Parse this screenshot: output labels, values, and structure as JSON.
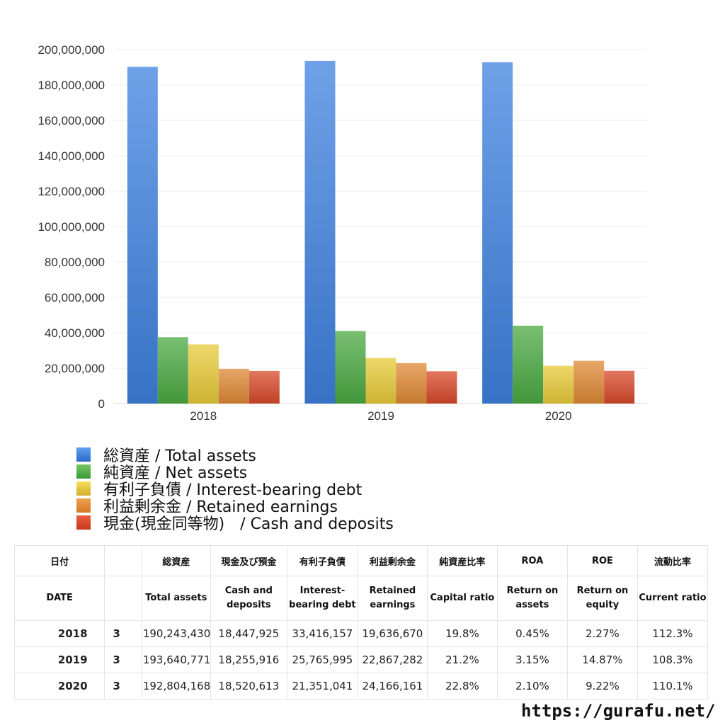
{
  "chart_data": {
    "type": "bar",
    "categories": [
      "2018",
      "2019",
      "2020"
    ],
    "ylim": [
      0,
      200000000
    ],
    "y_ticks": [
      "0",
      "20,000,000",
      "40,000,000",
      "60,000,000",
      "80,000,000",
      "100,000,000",
      "120,000,000",
      "140,000,000",
      "160,000,000",
      "180,000,000",
      "200,000,000"
    ],
    "grid": true,
    "legend_position": "bottom-left",
    "series": [
      {
        "name": "総資産 / Total assets",
        "color": "#3f82e0",
        "values": [
          190243430,
          193640771,
          192804168
        ]
      },
      {
        "name": "純資産 / Net assets",
        "color": "#4caa43",
        "values": [
          37500000,
          41000000,
          44000000
        ]
      },
      {
        "name": "有利子負債 / Interest-bearing debt",
        "color": "#e8cb3a",
        "values": [
          33416157,
          25765995,
          21351041
        ]
      },
      {
        "name": "利益剰余金 / Retained earnings",
        "color": "#e08a35",
        "values": [
          19636670,
          22867282,
          24166161
        ]
      },
      {
        "name": "現金(現金同等物)　/  Cash and deposits",
        "color": "#d94a2b",
        "values": [
          18447925,
          18255916,
          18520613
        ]
      }
    ]
  },
  "table": {
    "header_jp": [
      "日付",
      "",
      "総資産",
      "現金及び預金",
      "有利子負債",
      "利益剰余金",
      "純資産比率",
      "ROA",
      "ROE",
      "流動比率"
    ],
    "header_en": [
      "DATE",
      "",
      "Total assets",
      "Cash and deposits",
      "Interest-bearing debt",
      "Retained earnings",
      "Capital ratio",
      "Return on assets",
      "Return on equity",
      "Current ratio"
    ],
    "rows": [
      [
        "2018",
        "3",
        "190,243,430",
        "18,447,925",
        "33,416,157",
        "19,636,670",
        "19.8%",
        "0.45%",
        "2.27%",
        "112.3%"
      ],
      [
        "2019",
        "3",
        "193,640,771",
        "18,255,916",
        "25,765,995",
        "22,867,282",
        "21.2%",
        "3.15%",
        "14.87%",
        "108.3%"
      ],
      [
        "2020",
        "3",
        "192,804,168",
        "18,520,613",
        "21,351,041",
        "24,166,161",
        "22.8%",
        "2.10%",
        "9.22%",
        "110.1%"
      ]
    ]
  },
  "site_url": "https://gurafu.net/"
}
